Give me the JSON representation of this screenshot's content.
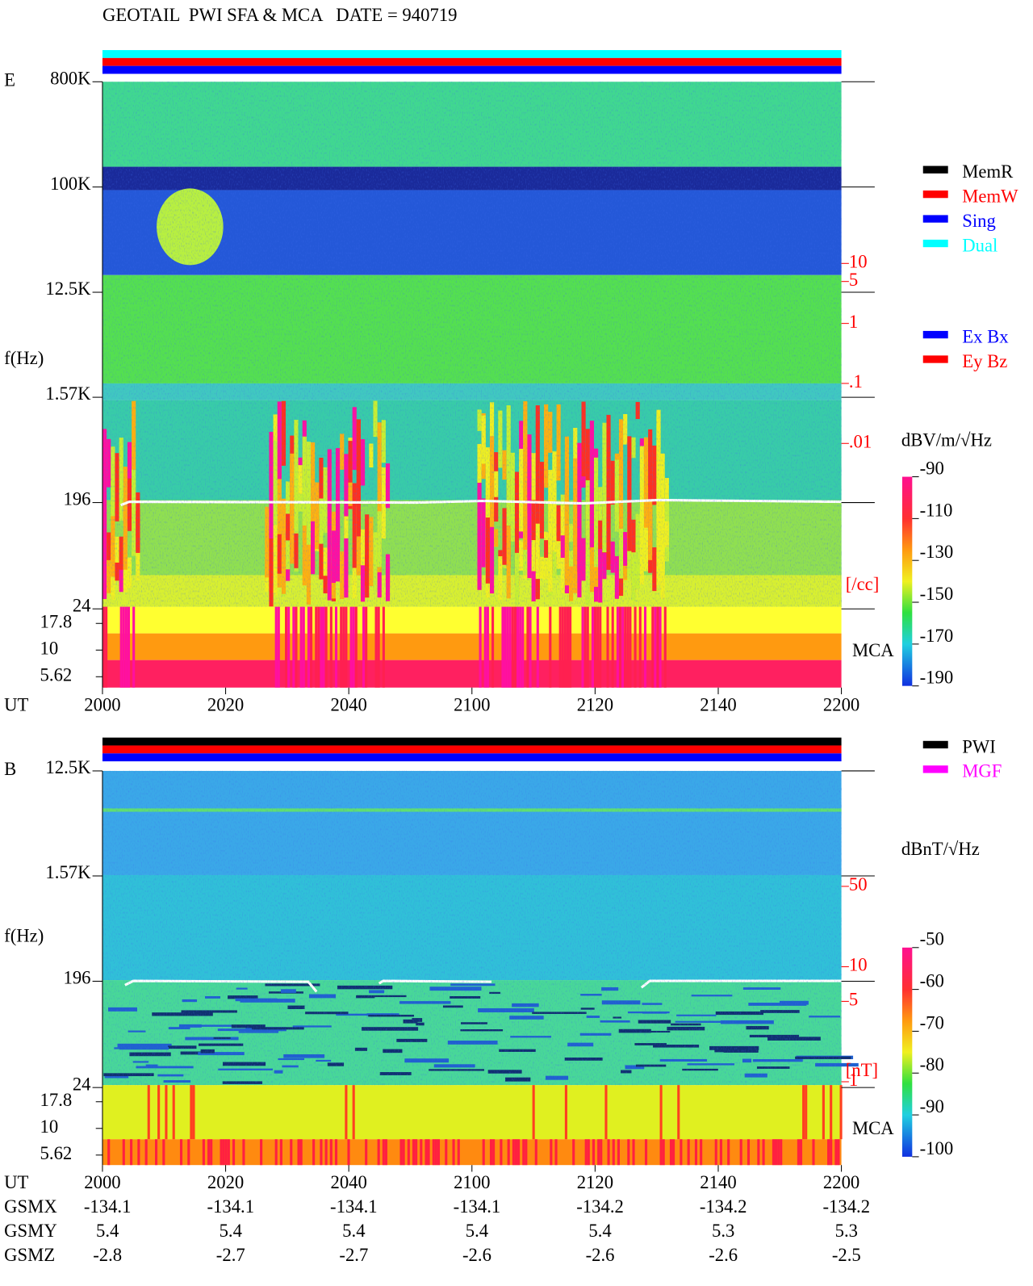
{
  "chart_data": [
    {
      "type": "spectrogram",
      "title": "GEOTAIL  PWI SFA & MCA   DATE = 940719",
      "panel_label": "E",
      "ylabel": "f(Hz)",
      "xlabel": "UT",
      "log_y": true,
      "status_bar_colors": [
        "#00ffff",
        "#ff0000",
        "#0000ff"
      ],
      "xlim": [
        2000,
        2200
      ],
      "xticks": [
        2000,
        2020,
        2040,
        2100,
        2120,
        2140,
        2200
      ],
      "ylim": [
        24,
        800000
      ],
      "yticks": [
        {
          "value": 800000,
          "label": "800K"
        },
        {
          "value": 100000,
          "label": "100K"
        },
        {
          "value": 12500,
          "label": "12.5K"
        },
        {
          "value": 1570,
          "label": "1.57K"
        },
        196,
        24
      ],
      "mca_label": "MCA",
      "mca_yticks": [
        17.8,
        10,
        5.62
      ],
      "y2ticks": [
        10,
        5,
        1,
        {
          "value": 0.1,
          "label": ".1"
        },
        {
          "value": 0.01,
          "label": ".01"
        }
      ],
      "y2_unit": "[/cc]",
      "colorbar": {
        "label": "dBV/m/√Hz",
        "lim": [
          -190,
          -90
        ],
        "ticks": [
          -90,
          -110,
          -130,
          -150,
          -170,
          -190
        ]
      },
      "legend": [
        {
          "name": "MemR",
          "color": "#000000"
        },
        {
          "name": "MemW",
          "color": "#ff0000"
        },
        {
          "name": "Sing",
          "color": "#0000ff"
        },
        {
          "name": "Dual",
          "color": "#00ffff"
        }
      ],
      "legend2": [
        {
          "name": "Ex Bx",
          "color": "#0000ff"
        },
        {
          "name": "Ey Bz",
          "color": "#ff0000"
        }
      ]
    },
    {
      "type": "spectrogram",
      "panel_label": "B",
      "ylabel": "f(Hz)",
      "xlabel": "UT",
      "log_y": true,
      "status_bar_colors": [
        "#000000",
        "#ff0000",
        "#0000ff"
      ],
      "xlim": [
        2000,
        2200
      ],
      "xticks": [
        2000,
        2020,
        2040,
        2100,
        2120,
        2140,
        2200
      ],
      "ylim": [
        24,
        12500
      ],
      "yticks": [
        {
          "value": 12500,
          "label": "12.5K"
        },
        {
          "value": 1570,
          "label": "1.57K"
        },
        196,
        24
      ],
      "mca_label": "MCA",
      "mca_yticks": [
        17.8,
        10,
        5.62
      ],
      "y2ticks": [
        50,
        10,
        5,
        1
      ],
      "y2_unit": "[nT]",
      "colorbar": {
        "label": "dBnT/√Hz",
        "lim": [
          -100,
          -50
        ],
        "ticks": [
          -50,
          -60,
          -70,
          -80,
          -90,
          -100
        ]
      },
      "legend": [
        {
          "name": "PWI",
          "color": "#000000"
        },
        {
          "name": "MGF",
          "color": "#ff00ff"
        }
      ],
      "positions": [
        {
          "label": "GSMX",
          "values": [
            -134.1,
            -134.1,
            -134.1,
            -134.1,
            -134.2,
            -134.2,
            -134.2
          ]
        },
        {
          "label": "GSMY",
          "values": [
            5.4,
            5.4,
            5.4,
            5.4,
            5.4,
            5.3,
            5.3
          ]
        },
        {
          "label": "GSMZ",
          "values": [
            -2.8,
            -2.7,
            -2.7,
            -2.6,
            -2.6,
            -2.6,
            -2.5
          ]
        }
      ]
    }
  ]
}
